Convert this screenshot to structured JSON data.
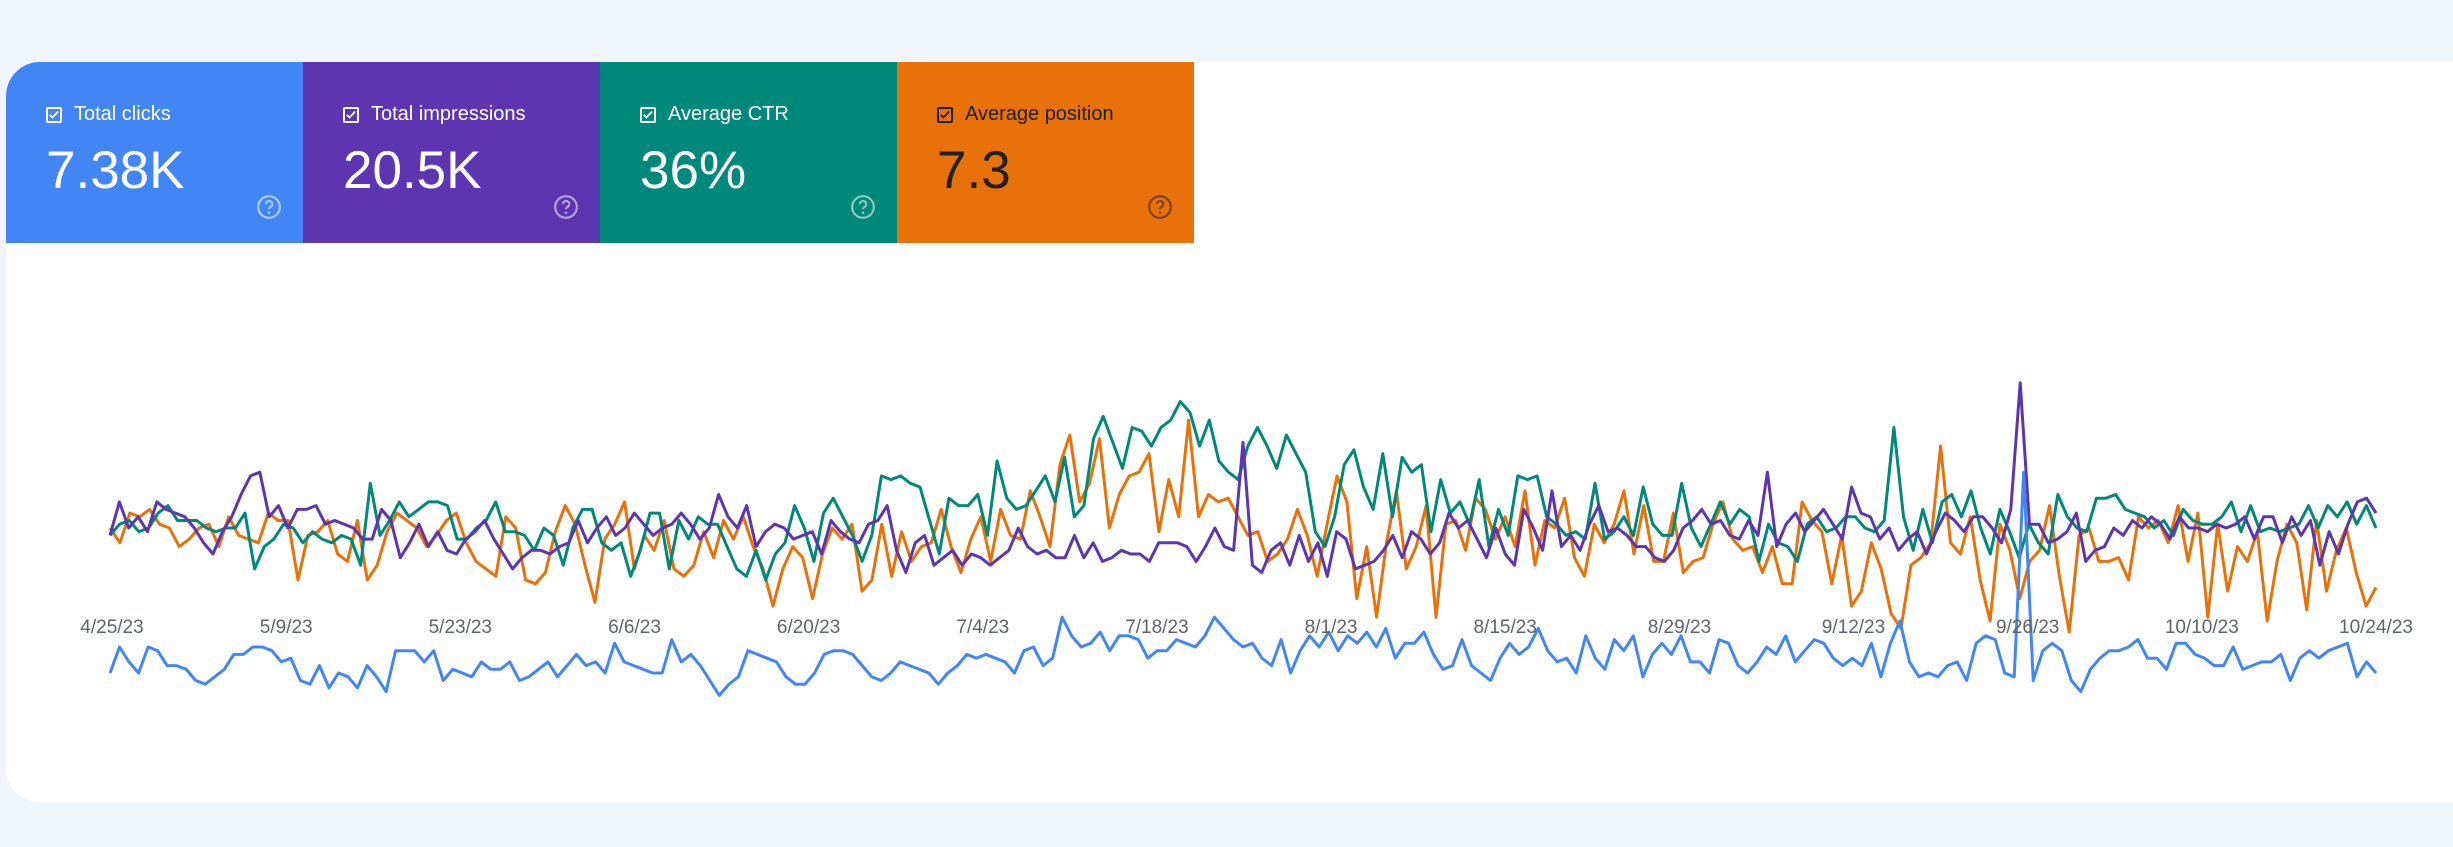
{
  "metrics": [
    {
      "label": "Total clicks",
      "value": "7.38K",
      "color": "#4285f4",
      "text_color": "#ffffff",
      "checked": true,
      "icon": "help-circle-icon"
    },
    {
      "label": "Total impressions",
      "value": "20.5K",
      "color": "#5e35b1",
      "text_color": "#ffffff",
      "checked": true,
      "icon": "help-circle-icon"
    },
    {
      "label": "Average CTR",
      "value": "36%",
      "color": "#00897b",
      "text_color": "#ffffff",
      "checked": true,
      "icon": "help-circle-icon"
    },
    {
      "label": "Average position",
      "value": "7.3",
      "color": "#e8710a",
      "text_color": "#202124",
      "checked": true,
      "icon": "help-circle-icon"
    }
  ],
  "chart_data": {
    "type": "line",
    "x_labels": [
      "4/25/23",
      "5/9/23",
      "5/23/23",
      "6/6/23",
      "6/20/23",
      "7/4/23",
      "7/18/23",
      "8/1/23",
      "8/15/23",
      "8/29/23",
      "9/12/23",
      "9/26/23",
      "10/10/23",
      "10/24/23"
    ],
    "x_start": "4/25/23",
    "x_end": "10/24/23",
    "grid": false,
    "legend": "none",
    "series": [
      {
        "name": "Average position",
        "color": "#e8710a",
        "values": [
          57,
          53,
          61,
          60,
          62,
          58,
          57,
          52,
          54,
          57,
          58,
          52,
          60,
          55,
          54,
          53,
          61,
          59,
          59,
          43,
          55,
          56,
          59,
          50,
          48,
          59,
          43,
          47,
          56,
          61,
          59,
          57,
          52,
          55,
          59,
          61,
          53,
          48,
          46,
          44,
          60,
          57,
          43,
          42,
          45,
          56,
          63,
          58,
          47,
          37,
          54,
          58,
          64,
          46,
          55,
          51,
          59,
          46,
          44,
          47,
          56,
          49,
          59,
          54,
          60,
          52,
          46,
          36,
          46,
          52,
          49,
          38,
          50,
          57,
          54,
          58,
          40,
          43,
          58,
          44,
          56,
          48,
          52,
          53,
          62,
          52,
          45,
          54,
          60,
          48,
          62,
          55,
          54,
          67,
          60,
          52,
          74,
          82,
          64,
          69,
          81,
          57,
          66,
          71,
          72,
          77,
          56,
          70,
          60,
          86,
          60,
          66,
          64,
          65,
          60,
          55,
          56,
          48,
          50,
          54,
          62,
          55,
          44,
          58,
          71,
          64,
          38,
          52,
          33,
          53,
          67,
          46,
          52,
          63,
          33,
          58,
          59,
          51,
          65,
          62,
          54,
          60,
          52,
          67,
          47,
          59,
          57,
          65,
          49,
          44,
          58,
          53,
          58,
          67,
          50,
          63,
          48,
          48,
          61,
          45,
          48,
          49,
          58,
          64,
          54,
          51,
          52,
          45,
          52,
          42,
          42,
          64,
          59,
          56,
          42,
          55,
          36,
          40,
          53,
          46,
          34,
          30,
          47,
          49,
          53,
          79,
          53,
          50,
          60,
          43,
          32,
          58,
          51,
          38,
          48,
          51,
          63,
          44,
          29,
          55,
          57,
          48,
          48,
          49,
          43,
          60,
          57,
          59,
          53,
          63,
          48,
          61,
          33,
          58,
          40,
          52,
          48,
          56,
          32,
          48,
          58,
          53,
          35,
          59,
          40,
          51,
          57,
          45,
          36,
          41
        ]
      },
      {
        "name": "Average CTR",
        "color": "#00897b",
        "values": [
          55,
          58,
          59,
          56,
          57,
          61,
          63,
          59,
          59,
          59,
          57,
          56,
          57,
          57,
          61,
          46,
          52,
          54,
          58,
          57,
          53,
          56,
          54,
          53,
          55,
          54,
          47,
          69,
          55,
          59,
          64,
          60,
          62,
          64,
          64,
          63,
          54,
          54,
          57,
          59,
          64,
          56,
          56,
          55,
          51,
          57,
          55,
          47,
          57,
          62,
          62,
          53,
          51,
          53,
          44,
          51,
          61,
          61,
          46,
          59,
          54,
          60,
          58,
          58,
          52,
          46,
          44,
          51,
          43,
          50,
          53,
          63,
          57,
          48,
          61,
          65,
          60,
          55,
          48,
          55,
          71,
          70,
          71,
          69,
          68,
          59,
          50,
          65,
          63,
          63,
          66,
          55,
          75,
          65,
          62,
          63,
          67,
          71,
          64,
          76,
          60,
          63,
          81,
          87,
          80,
          73,
          84,
          83,
          79,
          84,
          86,
          91,
          88,
          79,
          86,
          75,
          72,
          70,
          79,
          84,
          79,
          73,
          82,
          77,
          72,
          56,
          52,
          60,
          74,
          78,
          68,
          62,
          77,
          60,
          76,
          72,
          74,
          56,
          70,
          61,
          64,
          58,
          70,
          52,
          62,
          55,
          71,
          70,
          71,
          60,
          58,
          55,
          56,
          54,
          69,
          54,
          56,
          60,
          55,
          68,
          58,
          55,
          55,
          69,
          57,
          52,
          58,
          64,
          58,
          62,
          60,
          48,
          58,
          53,
          52,
          48,
          58,
          60,
          56,
          57,
          60,
          60,
          57,
          56,
          59,
          84,
          60,
          51,
          62,
          53,
          64,
          66,
          60,
          67,
          57,
          50,
          62,
          56,
          49,
          58,
          53,
          50,
          66,
          60,
          57,
          56,
          65,
          65,
          66,
          62,
          61,
          60,
          57,
          59,
          55,
          62,
          59,
          58,
          58,
          60,
          64,
          56,
          63,
          56,
          57,
          56,
          57,
          58,
          63,
          57,
          63,
          60,
          64,
          58,
          63,
          57
        ]
      },
      {
        "name": "Total impressions",
        "color": "#5e35b1",
        "values": [
          55,
          64,
          57,
          60,
          56,
          64,
          62,
          61,
          60,
          57,
          53,
          50,
          56,
          60,
          66,
          71,
          72,
          60,
          63,
          57,
          62,
          62,
          63,
          58,
          59,
          58,
          57,
          54,
          54,
          62,
          59,
          49,
          53,
          58,
          52,
          56,
          51,
          50,
          54,
          56,
          59,
          54,
          50,
          46,
          49,
          51,
          51,
          50,
          52,
          53,
          59,
          53,
          57,
          60,
          55,
          57,
          61,
          58,
          55,
          57,
          58,
          61,
          58,
          54,
          57,
          66,
          60,
          57,
          63,
          52,
          56,
          58,
          57,
          54,
          55,
          56,
          50,
          59,
          56,
          54,
          53,
          58,
          59,
          63,
          51,
          45,
          53,
          55,
          47,
          49,
          51,
          47,
          50,
          49,
          47,
          49,
          51,
          57,
          52,
          50,
          51,
          49,
          49,
          55,
          49,
          53,
          48,
          49,
          51,
          50,
          50,
          48,
          53,
          53,
          53,
          52,
          48,
          52,
          57,
          52,
          51,
          80,
          47,
          45,
          51,
          53,
          47,
          55,
          48,
          53,
          44,
          56,
          54,
          46,
          47,
          48,
          51,
          55,
          49,
          56,
          54,
          50,
          53,
          61,
          57,
          59,
          54,
          49,
          57,
          50,
          47,
          62,
          57,
          51,
          67,
          52,
          55,
          51,
          58,
          63,
          56,
          57,
          55,
          52,
          52,
          49,
          48,
          51,
          57,
          59,
          62,
          58,
          59,
          55,
          54,
          59,
          55,
          72,
          52,
          58,
          61,
          56,
          59,
          62,
          58,
          54,
          68,
          61,
          60,
          54,
          57,
          51,
          54,
          56,
          50,
          56,
          61,
          59,
          56,
          60,
          60,
          57,
          53,
          62,
          96,
          58,
          58,
          53,
          54,
          56,
          61,
          48,
          51,
          52,
          57,
          55,
          59,
          57,
          60,
          58,
          54,
          60,
          57,
          57,
          56,
          58,
          57,
          58,
          60,
          54,
          60,
          60,
          53,
          60,
          55,
          59,
          47,
          56,
          50,
          58,
          64,
          65,
          61
        ]
      },
      {
        "name": "Total clicks",
        "color": "#4285f4",
        "values": [
          18,
          25,
          21,
          18,
          25,
          24,
          20,
          20,
          19,
          16,
          15,
          17,
          19,
          23,
          23,
          25,
          25,
          24,
          21,
          22,
          16,
          15,
          20,
          14,
          18,
          17,
          14,
          20,
          17,
          13,
          24,
          24,
          24,
          21,
          24,
          16,
          19,
          18,
          17,
          21,
          19,
          19,
          21,
          16,
          17,
          19,
          21,
          17,
          20,
          23,
          20,
          21,
          18,
          26,
          21,
          20,
          19,
          18,
          18,
          27,
          21,
          23,
          20,
          16,
          12,
          15,
          17,
          24,
          23,
          22,
          21,
          17,
          15,
          15,
          18,
          23,
          24,
          24,
          23,
          20,
          17,
          16,
          18,
          21,
          20,
          19,
          18,
          15,
          18,
          20,
          23,
          22,
          23,
          22,
          21,
          18,
          24,
          25,
          20,
          22,
          33,
          28,
          25,
          26,
          29,
          24,
          28,
          28,
          27,
          22,
          24,
          24,
          27,
          26,
          25,
          28,
          33,
          30,
          27,
          25,
          26,
          22,
          20,
          27,
          18,
          24,
          28,
          25,
          29,
          24,
          28,
          26,
          29,
          25,
          30,
          22,
          26,
          26,
          29,
          23,
          19,
          20,
          27,
          20,
          18,
          16,
          22,
          26,
          23,
          25,
          30,
          24,
          21,
          22,
          18,
          28,
          22,
          19,
          27,
          24,
          28,
          17,
          23,
          26,
          23,
          28,
          21,
          21,
          18,
          27,
          26,
          20,
          18,
          21,
          25,
          23,
          28,
          21,
          24,
          27,
          26,
          22,
          20,
          22,
          20,
          26,
          17,
          26,
          32,
          21,
          17,
          18,
          17,
          20,
          21,
          16,
          26,
          28,
          27,
          18,
          17,
          72,
          16,
          24,
          26,
          24,
          16,
          13,
          19,
          22,
          24,
          24,
          25,
          27,
          22,
          22,
          19,
          26,
          26,
          23,
          22,
          20,
          20,
          25,
          19,
          20,
          21,
          21,
          23,
          16,
          22,
          24,
          22,
          24,
          25,
          26,
          17,
          21,
          18
        ]
      }
    ]
  }
}
